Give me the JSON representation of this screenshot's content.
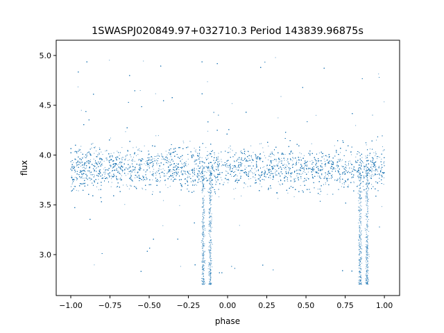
{
  "chart_data": {
    "type": "scatter",
    "title": "1SWASPJ020849.97+032710.3 Period 143839.96875s",
    "xlabel": "phase",
    "ylabel": "flux",
    "xlim": [
      -1.093,
      1.097
    ],
    "ylim": [
      2.589,
      5.153
    ],
    "xticks": [
      -1.0,
      -0.75,
      -0.5,
      -0.25,
      0.0,
      0.25,
      0.5,
      0.75,
      1.0
    ],
    "xtick_labels": [
      "−1.00",
      "−0.75",
      "−0.50",
      "−0.25",
      "0.00",
      "0.25",
      "0.50",
      "0.75",
      "1.00"
    ],
    "yticks": [
      3.0,
      3.5,
      4.0,
      4.5,
      5.0
    ],
    "ytick_labels": [
      "3.0",
      "3.5",
      "4.0",
      "4.5",
      "5.0"
    ],
    "grid": false,
    "marker_color": "#1f77b4",
    "data_summary": {
      "phase_range": [
        -1.0,
        1.0
      ],
      "baseline_flux": 3.87,
      "baseline_spread": 0.12,
      "flux_max": 5.0,
      "flux_min": 2.7,
      "eclipses": [
        {
          "phase": -0.155,
          "min_flux": 2.7
        },
        {
          "phase": -0.11,
          "min_flux": 2.7
        },
        {
          "phase": 0.845,
          "min_flux": 2.7
        },
        {
          "phase": 0.89,
          "min_flux": 2.7
        }
      ]
    }
  }
}
